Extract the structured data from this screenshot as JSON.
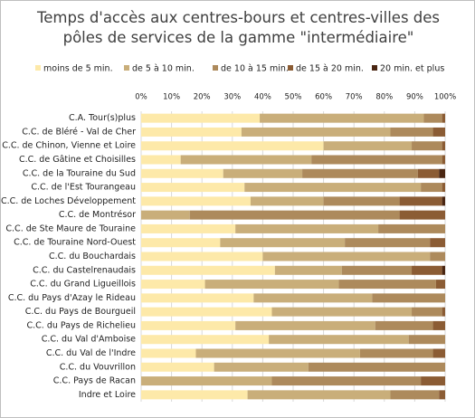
{
  "chart_data": {
    "type": "stacked-bar-horizontal",
    "title": "Temps d'accès aux centres-bours et centres-villes des pôles de services de la gamme \"intermédiaire\"",
    "categories": [
      "C.A. Tour(s)plus",
      "C.C. de Bléré - Val de Cher",
      "C.C. de Chinon, Vienne et Loire",
      "C.C. de Gâtine et Choisilles",
      "C.C. de la Touraine du Sud",
      "C.C. de l'Est Tourangeau",
      "C.C. de Loches Développement",
      "C.C. de Montrésor",
      "C.C. de Ste Maure de Touraine",
      "C.C. de Touraine Nord-Ouest",
      "C.C. du Bouchardais",
      "C.C. du Castelrenaudais",
      "C.C. du Grand Ligueillois",
      "C.C. du Pays d'Azay le Rideau",
      "C.C. du Pays de Bourgueil",
      "C.C. du Pays de Richelieu",
      "C.C. du Val d'Amboise",
      "C.C. du Val de l'Indre",
      "C.C. du Vouvrillon",
      "C.C. Pays de Racan",
      "Indre et Loire"
    ],
    "series": [
      {
        "name": "moins de 5 min.",
        "color": "#fde9a9",
        "values": [
          39,
          33,
          60,
          13,
          27,
          34,
          36,
          0,
          31,
          26,
          40,
          44,
          21,
          37,
          43,
          31,
          42,
          18,
          24,
          0,
          35
        ]
      },
      {
        "name": "de 5 à 10 min.",
        "color": "#c9ae7a",
        "values": [
          54,
          49,
          29,
          43,
          26,
          58,
          24,
          16,
          47,
          41,
          55,
          22,
          44,
          39,
          46,
          46,
          46,
          54,
          31,
          43,
          47
        ]
      },
      {
        "name": "de 10 à 15 min.",
        "color": "#ad8a5c",
        "values": [
          6,
          14,
          10,
          43,
          38,
          7,
          25,
          69,
          22,
          28,
          5,
          23,
          32,
          24,
          10,
          19,
          12,
          24,
          45,
          49,
          16
        ]
      },
      {
        "name": "de 15 à 20 min.",
        "color": "#8b5c34",
        "values": [
          1,
          4,
          1,
          1,
          7,
          1,
          14,
          15,
          0,
          5,
          0,
          10,
          3,
          0,
          1,
          4,
          0,
          4,
          0,
          8,
          2
        ]
      },
      {
        "name": "20 min. et plus",
        "color": "#4a2612",
        "values": [
          0,
          0,
          0,
          0,
          2,
          0,
          1,
          0,
          0,
          0,
          0,
          1,
          0,
          0,
          0,
          0,
          0,
          0,
          0,
          0,
          0
        ]
      }
    ],
    "xlim": [
      0,
      100
    ],
    "xticks": [
      {
        "value": 0,
        "label": "0%"
      },
      {
        "value": 10,
        "label": "10%"
      },
      {
        "value": 20,
        "label": "20%"
      },
      {
        "value": 30,
        "label": "30%"
      },
      {
        "value": 40,
        "label": "40%"
      },
      {
        "value": 50,
        "label": "50%"
      },
      {
        "value": 60,
        "label": "60%"
      },
      {
        "value": 70,
        "label": "70%"
      },
      {
        "value": 80,
        "label": "80%"
      },
      {
        "value": 90,
        "label": "90%"
      },
      {
        "value": 100,
        "label": "100%"
      }
    ],
    "grid": true
  }
}
